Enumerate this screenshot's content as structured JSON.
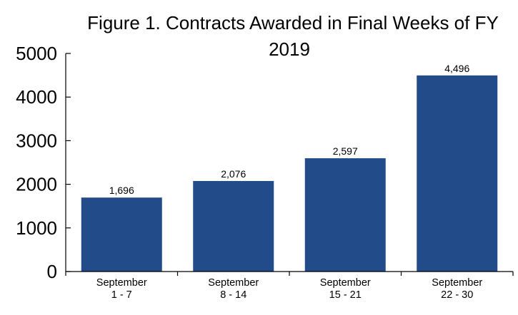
{
  "chart_data": {
    "type": "bar",
    "title_lines": [
      "Figure 1. Contracts Awarded in Final Weeks of FY",
      "2019"
    ],
    "categories": [
      [
        "September",
        "1 - 7"
      ],
      [
        "September",
        "8 - 14"
      ],
      [
        "September",
        "15 - 21"
      ],
      [
        "September",
        "22 - 30"
      ]
    ],
    "values": [
      1696,
      2076,
      2597,
      4496
    ],
    "value_labels": [
      "1,696",
      "2,076",
      "2,597",
      "4,496"
    ],
    "yticks": [
      0,
      1000,
      2000,
      3000,
      4000,
      5000
    ],
    "ytick_labels": [
      "0",
      "1000",
      "2000",
      "3000",
      "4000",
      "5000"
    ],
    "ylim": [
      0,
      5000
    ],
    "xlabel": "",
    "ylabel": "",
    "grid": false,
    "legend": "none",
    "bar_color": "#224b8a"
  }
}
